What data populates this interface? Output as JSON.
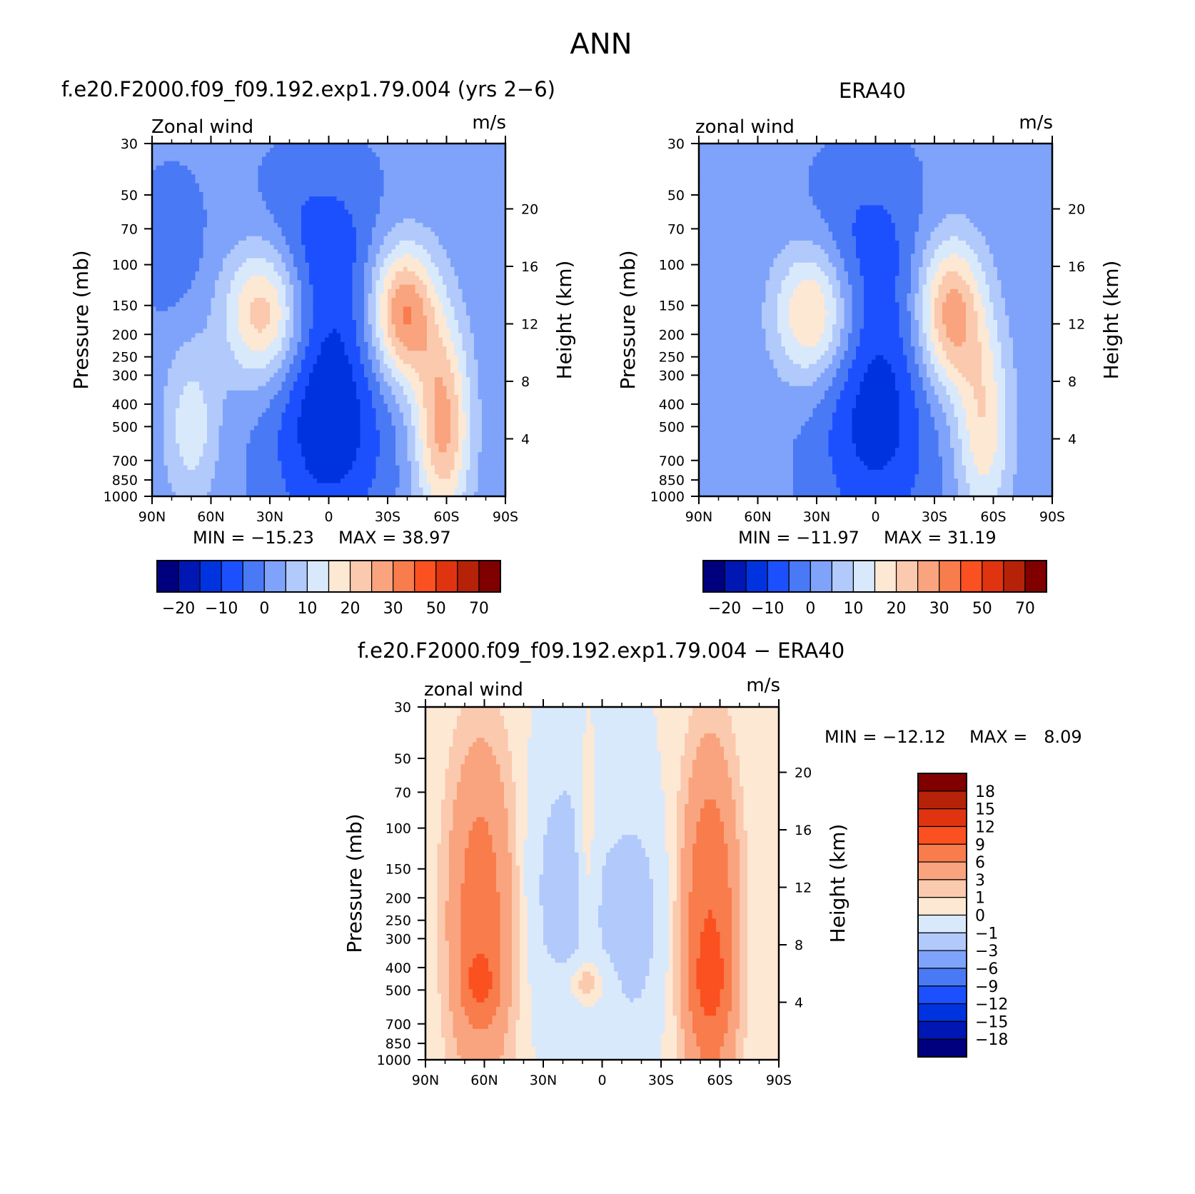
{
  "figure": {
    "main_title": "ANN",
    "diff_title": "f.e20.F2000.f09_f09.192.exp1.79.004 − ERA40"
  },
  "colors": {
    "abs_levels": [
      "#00007f",
      "#0017b3",
      "#0033e0",
      "#1c50ff",
      "#4a79f5",
      "#7fa3fa",
      "#b1c9fb",
      "#d9e9fc",
      "#fde8d4",
      "#fbc9ad",
      "#f9a47e",
      "#f87c4c",
      "#fb5020",
      "#e03410",
      "#b52208",
      "#800000"
    ],
    "diff_levels": [
      "#00007f",
      "#0017b3",
      "#0033e0",
      "#1c50ff",
      "#4a79f5",
      "#7fa3fa",
      "#b1c9fb",
      "#d9e9fc",
      "#fde8d4",
      "#fbc9ad",
      "#f9a47e",
      "#f87c4c",
      "#fb5020",
      "#e03410",
      "#b52208",
      "#800000"
    ]
  },
  "chart_data": [
    {
      "type": "heatmap",
      "title": "f.e20.F2000.f09_f09.192.exp1.79.004 (yrs 2−6)",
      "label_left": "Zonal wind",
      "label_right": "m/s",
      "xlabel": "",
      "ylabel": "Pressure (mb)",
      "y2label": "Height (km)",
      "x_ticks": [
        "90N",
        "60N",
        "30N",
        "0",
        "30S",
        "60S",
        "90S"
      ],
      "y_ticks": [
        30,
        50,
        70,
        100,
        150,
        200,
        250,
        300,
        400,
        500,
        700,
        850,
        1000
      ],
      "y2_ticks": [
        4,
        8,
        12,
        16,
        20
      ],
      "y_scale": "log",
      "ylim": [
        1000,
        30
      ],
      "min_label": "MIN = −15.23",
      "max_label": "MAX = 38.97",
      "min": -15.23,
      "max": 38.97,
      "colorbar_ticks": [
        "−20",
        "−10",
        "0",
        "10",
        "20",
        "30",
        "50",
        "70"
      ],
      "colorbar_levels": [
        -25,
        -20,
        -15,
        -10,
        -5,
        0,
        5,
        10,
        15,
        20,
        25,
        30,
        40,
        50,
        60,
        70
      ]
    },
    {
      "type": "heatmap",
      "title": "ERA40",
      "label_left": "zonal wind",
      "label_right": "m/s",
      "xlabel": "",
      "ylabel": "Pressure (mb)",
      "y2label": "Height (km)",
      "x_ticks": [
        "90N",
        "60N",
        "30N",
        "0",
        "30S",
        "60S",
        "90S"
      ],
      "y_ticks": [
        30,
        50,
        70,
        100,
        150,
        200,
        250,
        300,
        400,
        500,
        700,
        850,
        1000
      ],
      "y2_ticks": [
        4,
        8,
        12,
        16,
        20
      ],
      "y_scale": "log",
      "ylim": [
        1000,
        30
      ],
      "min_label": "MIN = −11.97",
      "max_label": "MAX = 31.19",
      "min": -11.97,
      "max": 31.19,
      "colorbar_ticks": [
        "−20",
        "−10",
        "0",
        "10",
        "20",
        "30",
        "50",
        "70"
      ],
      "colorbar_levels": [
        -25,
        -20,
        -15,
        -10,
        -5,
        0,
        5,
        10,
        15,
        20,
        25,
        30,
        40,
        50,
        60,
        70
      ]
    },
    {
      "type": "heatmap",
      "title": "",
      "label_left": "zonal wind",
      "label_right": "m/s",
      "xlabel": "",
      "ylabel": "Pressure (mb)",
      "y2label": "Height (km)",
      "x_ticks": [
        "90N",
        "60N",
        "30N",
        "0",
        "30S",
        "60S",
        "90S"
      ],
      "y_ticks": [
        30,
        50,
        70,
        100,
        150,
        200,
        250,
        300,
        400,
        500,
        700,
        850,
        1000
      ],
      "y2_ticks": [
        4,
        8,
        12,
        16,
        20
      ],
      "y_scale": "log",
      "ylim": [
        1000,
        30
      ],
      "min_label": "MIN = −12.12",
      "max_label": "MAX =   8.09",
      "min": -12.12,
      "max": 8.09,
      "colorbar_ticks": [
        "18",
        "15",
        "12",
        "9",
        "6",
        "3",
        "1",
        "0",
        "−1",
        "−3",
        "−6",
        "−9",
        "−12",
        "−15",
        "−18"
      ],
      "colorbar_levels": [
        -21,
        -18,
        -15,
        -12,
        -9,
        -6,
        -3,
        -1,
        0,
        1,
        3,
        6,
        9,
        12,
        15,
        18,
        21
      ]
    }
  ]
}
